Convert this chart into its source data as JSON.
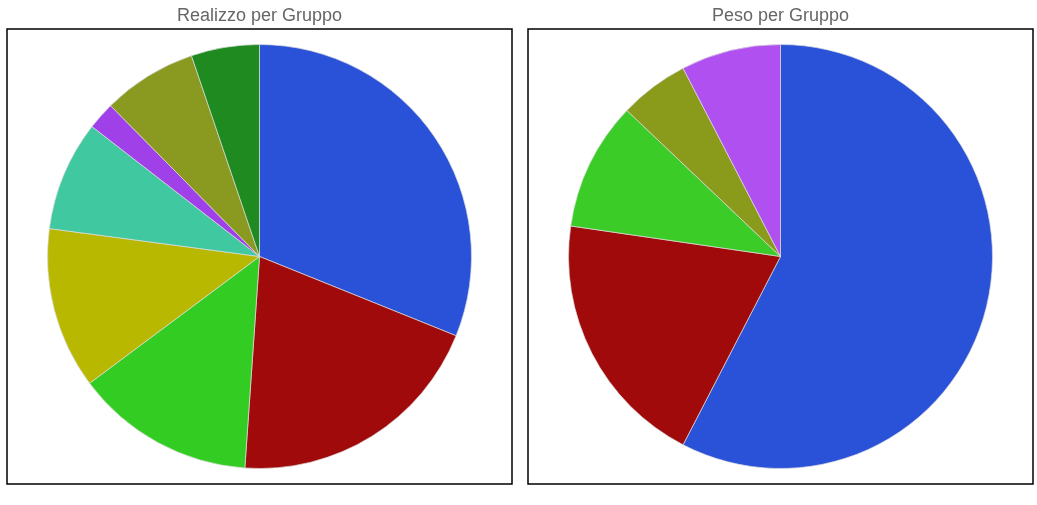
{
  "chart_data": [
    {
      "type": "pie",
      "title": "Realizzo  per Gruppo",
      "categories": [
        null,
        null,
        null,
        null,
        null,
        null,
        null,
        null
      ],
      "values": [
        31.1,
        20,
        13.7,
        12.3,
        8.4,
        2.1,
        7.2,
        5.2
      ],
      "colors": [
        "#2a52d8",
        "#a00a0a",
        "#33cc22",
        "#b8b800",
        "#40c8a0",
        "#a040e8",
        "#8a9a20",
        "#1f8a1f"
      ]
    },
    {
      "type": "pie",
      "title": "Peso per Gruppo",
      "categories": [
        null,
        null,
        null,
        null,
        null
      ],
      "values": [
        57.6,
        19.7,
        9.8,
        5.3,
        7.6
      ],
      "colors": [
        "#2a52d8",
        "#a00a0a",
        "#3ccc28",
        "#8a9a1a",
        "#b050f0"
      ]
    }
  ]
}
